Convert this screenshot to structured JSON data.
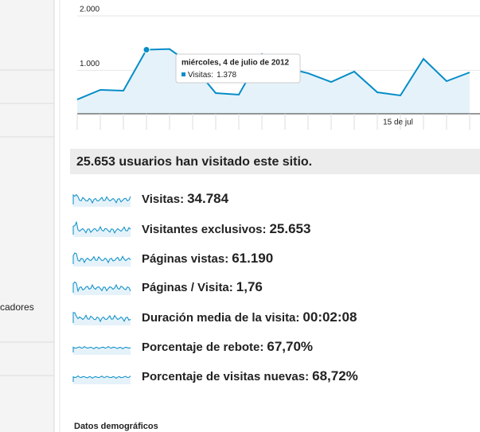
{
  "sidebar": {
    "item": "cadores"
  },
  "chart_data": {
    "type": "line",
    "x": [
      null,
      null,
      null,
      null,
      null,
      null,
      null,
      null,
      null,
      null,
      null,
      null,
      null,
      null,
      "15 de jul",
      null,
      null,
      null
    ],
    "series": [
      {
        "name": "Visitas",
        "color": "#058dc7",
        "values": [
          463,
          639,
          624,
          1378,
          1390,
          1090,
          580,
          551,
          1300,
          1050,
          946,
          785,
          976,
          595,
          537,
          1210,
          800,
          961
        ]
      }
    ],
    "ylim": [
      200,
      2000
    ],
    "yticks": [
      {
        "value": 1000,
        "label": "1.000"
      },
      {
        "value": 2000,
        "label": "2.000"
      }
    ],
    "tooltip": {
      "date": "miércoles, 4 de julio de 2012",
      "label": "Visitas:",
      "value": "1.378"
    }
  },
  "summary": "25.653 usuarios han visitado este sitio.",
  "metrics": [
    {
      "label": "Visitas:",
      "value": "34.784"
    },
    {
      "label": "Visitantes exclusivos:",
      "value": "25.653"
    },
    {
      "label": "Páginas vistas:",
      "value": "61.190"
    },
    {
      "label": "Páginas / Visita:",
      "value": "1,76"
    },
    {
      "label": "Duración media de la visita:",
      "value": "00:02:08"
    },
    {
      "label": "Porcentaje de rebote:",
      "value": "67,70%"
    },
    {
      "label": "Porcentaje de visitas nuevas:",
      "value": "68,72%"
    }
  ],
  "section": "Datos demográficos"
}
